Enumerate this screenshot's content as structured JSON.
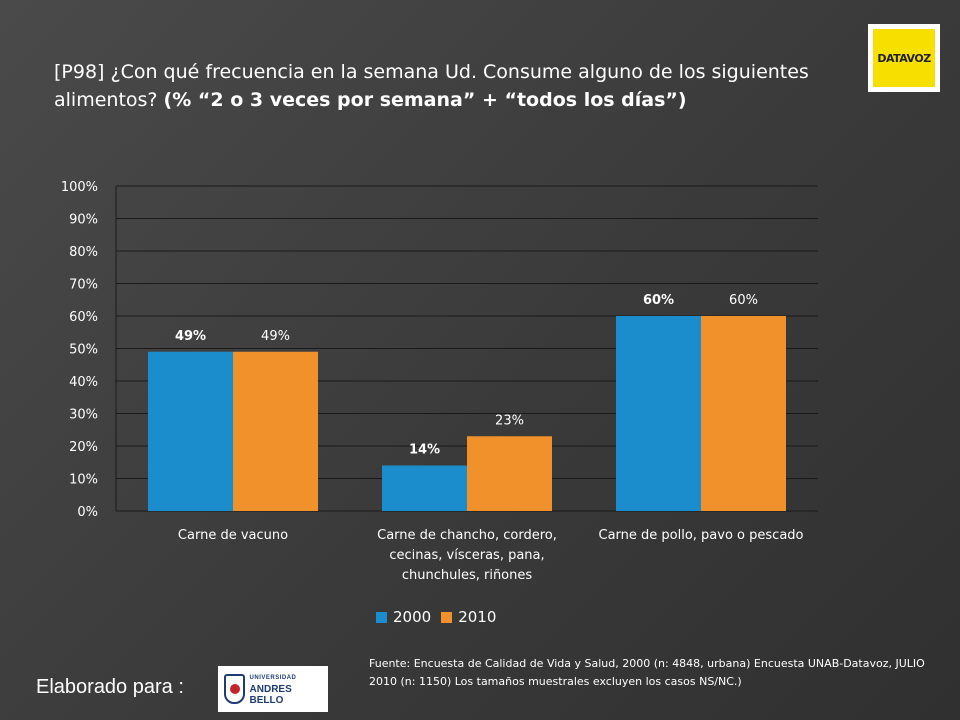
{
  "title": {
    "part1": "[P98] ¿Con qué frecuencia en la semana Ud. Consume alguno de los siguientes alimentos? ",
    "part2": "(% “2 o 3 veces por semana” + “todos los días”)"
  },
  "logos": {
    "datavoz": "DATAVOZ",
    "unab_small": "UNIVERSIDAD",
    "unab_big": "ANDRES BELLO"
  },
  "colors": {
    "series_2000": "#1b8dcc",
    "series_2010": "#f0912b",
    "grid": "#1a1a1a",
    "text": "#ffffff"
  },
  "chart_data": {
    "type": "bar",
    "categories": [
      [
        "Carne de vacuno"
      ],
      [
        "Carne de chancho, cordero,",
        "cecinas, vísceras, pana,",
        "chunchules, riñones"
      ],
      [
        "Carne de pollo, pavo o pescado"
      ]
    ],
    "series": [
      {
        "name": "2000",
        "values": [
          49,
          14,
          60
        ],
        "labels": [
          "49%",
          "14%",
          "60%"
        ],
        "color": "#1b8dcc",
        "label_bold": true
      },
      {
        "name": "2010",
        "values": [
          49,
          23,
          60
        ],
        "labels": [
          "49%",
          "23%",
          "60%"
        ],
        "color": "#f0912b",
        "label_bold": false
      }
    ],
    "ylim": [
      0,
      100
    ],
    "yticks": [
      "0%",
      "10%",
      "20%",
      "30%",
      "40%",
      "50%",
      "60%",
      "70%",
      "80%",
      "90%",
      "100%"
    ],
    "grid": true,
    "legend_position": "bottom"
  },
  "legend": {
    "s1": "2000",
    "s2": "2010"
  },
  "source": "Fuente: Encuesta de Calidad de Vida y Salud, 2000 (n: 4848, urbana) Encuesta UNAB-Datavoz, JULIO 2010 (n: 1150) Los tamaños muestrales excluyen los casos NS/NC.)",
  "made_for": "Elaborado para :"
}
